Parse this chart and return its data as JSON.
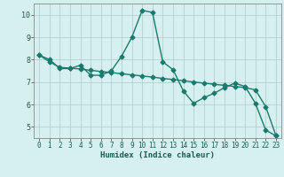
{
  "xlabel": "Humidex (Indice chaleur)",
  "background_color": "#d6f0f0",
  "grid_color": "#b0c8c8",
  "line_color": "#1a7a6e",
  "xlim": [
    -0.5,
    23.5
  ],
  "ylim": [
    4.5,
    10.5
  ],
  "yticks": [
    5,
    6,
    7,
    8,
    9,
    10
  ],
  "xticks": [
    0,
    1,
    2,
    3,
    4,
    5,
    6,
    7,
    8,
    9,
    10,
    11,
    12,
    13,
    14,
    15,
    16,
    17,
    18,
    19,
    20,
    21,
    22,
    23
  ],
  "line1_x": [
    0,
    1,
    2,
    3,
    4,
    5,
    6,
    7,
    8,
    9,
    10,
    11,
    12,
    13,
    14,
    15,
    16,
    17,
    18,
    19,
    20,
    21,
    22,
    23
  ],
  "line1_y": [
    8.2,
    8.0,
    7.6,
    7.6,
    7.75,
    7.3,
    7.3,
    7.5,
    8.15,
    9.0,
    10.2,
    10.1,
    7.9,
    7.55,
    6.6,
    6.05,
    6.3,
    6.5,
    6.75,
    6.95,
    6.8,
    6.05,
    4.85,
    4.6
  ],
  "line2_x": [
    0,
    1,
    2,
    3,
    4,
    5,
    6,
    7,
    8,
    9,
    10,
    11,
    12,
    13,
    14,
    15,
    16,
    17,
    18,
    19,
    20,
    21,
    22,
    23
  ],
  "line2_y": [
    8.2,
    7.9,
    7.65,
    7.62,
    7.58,
    7.52,
    7.47,
    7.42,
    7.37,
    7.32,
    7.27,
    7.22,
    7.16,
    7.11,
    7.06,
    7.0,
    6.95,
    6.9,
    6.85,
    6.8,
    6.75,
    6.65,
    5.9,
    4.6
  ],
  "marker": "D",
  "markersize": 2.5,
  "linewidth": 1.0
}
